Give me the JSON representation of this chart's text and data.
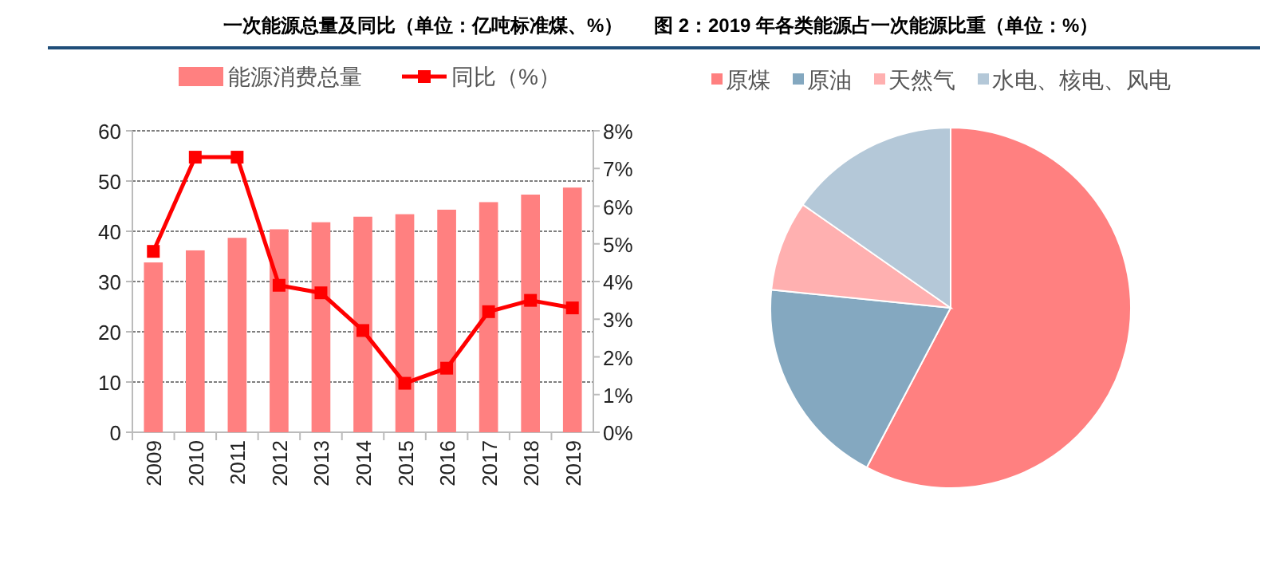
{
  "chart_data": [
    {
      "type": "bar",
      "title": "一次能源总量及同比（单位：亿吨标准煤、%）",
      "categories": [
        "2009",
        "2010",
        "2011",
        "2012",
        "2013",
        "2014",
        "2015",
        "2016",
        "2017",
        "2018",
        "2019"
      ],
      "series": [
        {
          "name": "能源消费总量",
          "color": "#ff8080",
          "values": [
            33.8,
            36.2,
            38.7,
            40.4,
            41.8,
            42.9,
            43.4,
            44.3,
            45.8,
            47.3,
            48.7
          ]
        },
        {
          "name": "同比（%）",
          "type": "line",
          "axis": "y2",
          "color": "#ff0000",
          "marker": "square",
          "values": [
            4.8,
            7.3,
            7.3,
            3.9,
            3.7,
            2.7,
            1.3,
            1.7,
            3.2,
            3.5,
            3.3
          ]
        }
      ],
      "ylim": [
        0,
        60
      ],
      "yticks": [
        0,
        10,
        20,
        30,
        40,
        50,
        60
      ],
      "y2lim": [
        0,
        8
      ],
      "y2ticks": [
        {
          "value": 0,
          "label": "0%"
        },
        {
          "value": 1,
          "label": "1%"
        },
        {
          "value": 2,
          "label": "2%"
        },
        {
          "value": 3,
          "label": "3%"
        },
        {
          "value": 4,
          "label": "4%"
        },
        {
          "value": 5,
          "label": "5%"
        },
        {
          "value": 6,
          "label": "6%"
        },
        {
          "value": 7,
          "label": "7%"
        },
        {
          "value": 8,
          "label": "8%"
        }
      ],
      "grid": "y",
      "legend": "top"
    },
    {
      "type": "pie",
      "title": "图 2：2019 年各类能源占一次能源比重（单位：%）",
      "categories": [
        "原煤",
        "原油",
        "天然气",
        "水电、核电、风电"
      ],
      "values": [
        57.7,
        18.9,
        8.1,
        15.3
      ],
      "colors": [
        "#ff8080",
        "#84a8c0",
        "#ffb0b0",
        "#b4c8d8"
      ],
      "legend": "top"
    }
  ]
}
